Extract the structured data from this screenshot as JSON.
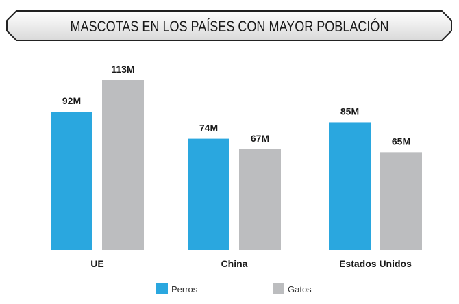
{
  "chart_data": {
    "type": "bar",
    "title": "MASCOTAS EN LOS PAÍSES CON MAYOR POBLACIÓN",
    "xlabel": "",
    "ylabel": "",
    "categories": [
      "UE",
      "China",
      "Estados Unidos"
    ],
    "series": [
      {
        "name": "Perros",
        "values": [
          92,
          74,
          85
        ],
        "labels": [
          "92M",
          "74M",
          "85M"
        ],
        "color": "#2aa7df"
      },
      {
        "name": "Gatos",
        "values": [
          113,
          67,
          65
        ],
        "labels": [
          "113M",
          "67M",
          "65M"
        ],
        "color": "#bcbdbf"
      }
    ],
    "ylim": [
      0,
      113
    ],
    "grid": false,
    "legend": "bottom"
  }
}
